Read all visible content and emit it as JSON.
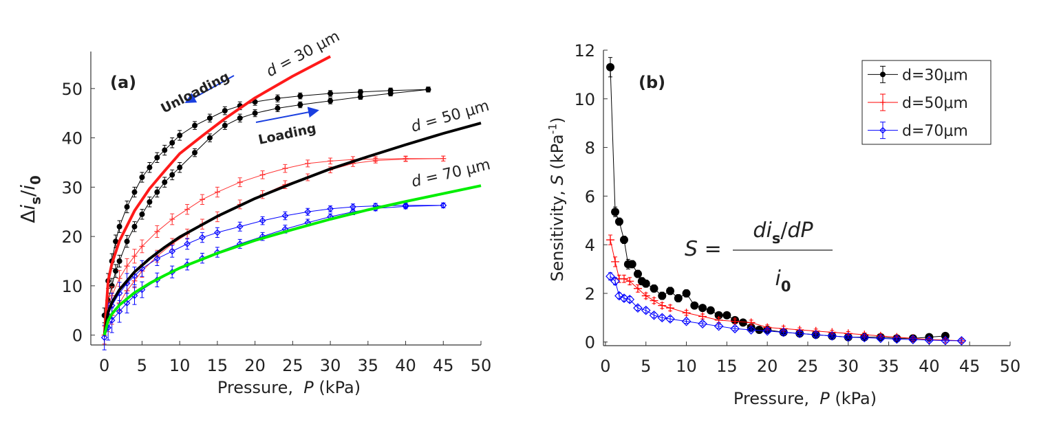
{
  "chart_data": [
    {
      "type": "line",
      "xlabel": [
        "Pressure,  ",
        "P",
        " (kPa)"
      ],
      "ylabel": [
        "Δ",
        "i",
        "s",
        "/",
        "i",
        "0"
      ],
      "annotations": [
        [
          "(a)"
        ],
        [
          "Unloading"
        ],
        [
          "Loading"
        ],
        [
          "d",
          " = 30 μm"
        ],
        [
          "d",
          " = 50 μm"
        ],
        [
          "d",
          " = 70 μm"
        ]
      ],
      "xlim": [
        -1.8,
        50
      ],
      "ylim": [
        -2,
        57.5
      ],
      "xticks": [
        0,
        5,
        10,
        15,
        20,
        25,
        30,
        35,
        40,
        45,
        50
      ],
      "yticks": [
        0,
        10,
        20,
        30,
        40,
        50
      ],
      "series": [
        {
          "color": "#000000",
          "marker": "circle",
          "x": [
            0.5,
            1,
            1.5,
            2,
            3,
            4,
            5,
            6,
            7,
            8,
            9,
            10,
            12,
            14,
            16,
            18,
            20,
            23,
            26,
            30,
            34,
            38,
            43
          ],
          "values": [
            11,
            15,
            19,
            22,
            26,
            29,
            32,
            34,
            36,
            37.5,
            39,
            40.5,
            42.5,
            44,
            45.5,
            46.5,
            47.3,
            48,
            48.5,
            49,
            49.3,
            49.6,
            49.8
          ],
          "errors": [
            1.5,
            1.5,
            1.3,
            1.2,
            1.2,
            1,
            1,
            1,
            1,
            1,
            1,
            1,
            0.8,
            0.8,
            0.8,
            0.8,
            0.7,
            0.7,
            0.6,
            0.6,
            0.5,
            0.5,
            0.5
          ]
        },
        {
          "color": "#000000",
          "marker": "circle",
          "x": [
            0,
            0.5,
            1,
            1.5,
            2,
            3,
            4,
            5,
            6,
            7,
            8,
            9,
            10,
            12,
            14,
            16,
            18,
            20,
            23,
            26,
            30,
            34,
            38,
            43
          ],
          "values": [
            4,
            7,
            10,
            13,
            15,
            19,
            22,
            24.5,
            27,
            29,
            31,
            32.5,
            34,
            37,
            40,
            42.5,
            44,
            45,
            46,
            46.7,
            47.5,
            48.3,
            49,
            49.8
          ],
          "errors": [
            1.5,
            1.5,
            1.5,
            1.3,
            1.2,
            1.2,
            1,
            1,
            1,
            1,
            1,
            1,
            1,
            0.8,
            0.8,
            0.8,
            0.8,
            0.7,
            0.7,
            0.6,
            0.6,
            0.5,
            0.5,
            0.5
          ]
        },
        {
          "color": "#ff3333",
          "marker": "plus",
          "x": [
            0.5,
            1,
            2,
            3,
            4,
            5,
            7,
            9,
            11,
            13,
            15,
            18,
            21,
            24,
            27,
            30,
            33,
            36,
            40,
            45
          ],
          "values": [
            6,
            8,
            11.5,
            14,
            16,
            18,
            21,
            23.5,
            25.5,
            27.5,
            29,
            31,
            32.5,
            33.8,
            34.8,
            35.3,
            35.6,
            35.7,
            35.8,
            35.8
          ],
          "errors": [
            1.8,
            1.8,
            1.6,
            1.5,
            1.4,
            1.3,
            1.2,
            1.1,
            1,
            1,
            1,
            0.9,
            0.8,
            0.8,
            0.7,
            0.6,
            0.6,
            0.5,
            0.5,
            0.5
          ]
        },
        {
          "color": "#ff3333",
          "marker": "plus",
          "x": [
            0,
            0.5,
            1,
            2,
            3,
            4,
            5,
            7,
            9,
            11,
            13,
            15,
            18,
            21,
            24,
            27,
            30,
            33,
            36,
            40,
            45
          ],
          "values": [
            0,
            2.5,
            4,
            6.5,
            9,
            11,
            13,
            16,
            18.5,
            20.5,
            22.5,
            24,
            26.5,
            28.5,
            30.5,
            32,
            33.5,
            34.8,
            35.4,
            35.7,
            35.8
          ],
          "errors": [
            1.8,
            1.8,
            1.8,
            1.6,
            1.5,
            1.4,
            1.3,
            1.2,
            1.1,
            1,
            1,
            1,
            0.9,
            0.8,
            0.8,
            0.7,
            0.6,
            0.6,
            0.5,
            0.5,
            0.5
          ]
        },
        {
          "color": "#0000ff",
          "marker": "diamond",
          "x": [
            0.5,
            1,
            2,
            3,
            4,
            5,
            7,
            9,
            11,
            13,
            15,
            18,
            21,
            24,
            27,
            30,
            33,
            36,
            40,
            45
          ],
          "values": [
            4,
            6,
            8.5,
            10.5,
            12,
            13.5,
            15.5,
            17,
            18.5,
            19.8,
            20.8,
            22,
            23.2,
            24.2,
            25,
            25.6,
            26,
            26.2,
            26.3,
            26.3
          ],
          "errors": [
            2.5,
            2.5,
            2.2,
            2,
            1.8,
            1.6,
            1.4,
            1.2,
            1.1,
            1,
            1,
            0.9,
            0.8,
            0.8,
            0.7,
            0.6,
            0.6,
            0.5,
            0.5,
            0.5
          ]
        },
        {
          "color": "#0000ff",
          "marker": "diamond",
          "x": [
            0,
            0.5,
            1,
            2,
            3,
            4,
            5,
            7,
            9,
            11,
            13,
            15,
            18,
            21,
            24,
            27,
            30,
            33,
            36,
            40,
            45
          ],
          "values": [
            -0.5,
            1.5,
            3,
            4.8,
            6.5,
            8,
            9.2,
            11.2,
            12.8,
            14.3,
            15.6,
            16.8,
            18.5,
            20,
            21.5,
            22.8,
            24,
            25,
            25.7,
            26.1,
            26.3
          ],
          "errors": [
            2.5,
            2.5,
            2.5,
            2.2,
            2,
            1.8,
            1.6,
            1.4,
            1.2,
            1.1,
            1,
            1,
            0.9,
            0.8,
            0.8,
            0.7,
            0.6,
            0.6,
            0.5,
            0.5,
            0.5
          ]
        },
        {
          "color": "#ff1a1a",
          "line_width": 4,
          "x": [
            0,
            0.5,
            1,
            2,
            4,
            6,
            8,
            10,
            13,
            16,
            20,
            25,
            30
          ],
          "values": [
            0,
            11,
            14.5,
            19.1,
            25.2,
            29.7,
            33.3,
            36.8,
            40.4,
            43.9,
            48.1,
            52.5,
            56.5
          ]
        },
        {
          "color": "#000000",
          "line_width": 4,
          "x": [
            0,
            0.5,
            1,
            2,
            4,
            6,
            8,
            10,
            15,
            20,
            25,
            30,
            35,
            40,
            45,
            50
          ],
          "values": [
            0,
            4.7,
            6.6,
            9.2,
            12.8,
            15.5,
            17.8,
            19.9,
            24.1,
            27.7,
            30.8,
            33.7,
            36.2,
            38.6,
            40.9,
            43
          ]
        },
        {
          "color": "#00ee00",
          "line_width": 4,
          "x": [
            0,
            0.5,
            1,
            2,
            4,
            6,
            8,
            10,
            15,
            20,
            25,
            30,
            35,
            40,
            45,
            50
          ],
          "values": [
            0,
            3,
            4.3,
            6.1,
            8.6,
            10.5,
            12.1,
            13.6,
            16.6,
            19.2,
            21.4,
            23.5,
            25.4,
            27.1,
            28.7,
            30.3
          ]
        }
      ]
    },
    {
      "type": "line",
      "xlabel": [
        "Pressure,  ",
        "P",
        " (kPa)"
      ],
      "ylabel": [
        "Sensitivity, ",
        "S",
        " (kPa",
        "-1",
        ")"
      ],
      "annotations": [
        [
          "(b)"
        ]
      ],
      "formula": {
        "lhs": [
          "S",
          " ="
        ],
        "numerator": [
          "d",
          "i",
          "s",
          "/",
          "dP"
        ],
        "denominator": [
          "i",
          "0"
        ]
      },
      "legend": "upper right",
      "xlim": [
        -0.25,
        50
      ],
      "ylim": [
        -0.15,
        12
      ],
      "xticks": [
        0,
        5,
        10,
        15,
        20,
        25,
        30,
        35,
        40,
        45,
        50
      ],
      "yticks": [
        0,
        2,
        4,
        6,
        8,
        10,
        12
      ],
      "series": [
        {
          "name": "d=30μm",
          "color": "#000000",
          "marker": "circle",
          "line_width": 1,
          "x": [
            0.6,
            1.2,
            1.7,
            2.3,
            2.8,
            3.3,
            4,
            4.5,
            5,
            6,
            7,
            8,
            9,
            10,
            11,
            12,
            13,
            14,
            15,
            16,
            17,
            18,
            19,
            20,
            22,
            24,
            26,
            28,
            30,
            32,
            34,
            36,
            38,
            40,
            42
          ],
          "values": [
            11.3,
            5.35,
            4.95,
            4.2,
            3.2,
            3.2,
            2.8,
            2.5,
            2.4,
            2.2,
            1.9,
            2.1,
            1.8,
            2,
            1.5,
            1.4,
            1.3,
            1.1,
            1.1,
            0.9,
            0.8,
            0.6,
            0.5,
            0.5,
            0.4,
            0.35,
            0.3,
            0.25,
            0.2,
            0.2,
            0.2,
            0.15,
            0.15,
            0.2,
            0.25
          ],
          "errors": [
            0.4,
            0.2,
            0.15,
            0.15,
            0.2,
            0.15,
            0.15,
            0.15,
            0.15,
            0.15,
            0.15,
            0.15,
            0.15,
            0.15,
            0.12,
            0.12,
            0.12,
            0.1,
            0.1,
            0.1,
            0.1,
            0.1,
            0.1,
            0.1,
            0.08,
            0.08,
            0.08,
            0.08,
            0.08,
            0.08,
            0.08,
            0.08,
            0.08,
            0.08,
            0.08
          ]
        },
        {
          "name": "d=50μm",
          "color": "#ff0000",
          "marker": "plus",
          "line_width": 1,
          "x": [
            0.6,
            1.2,
            1.7,
            2.3,
            3,
            4,
            5,
            6,
            7,
            8,
            10,
            12,
            14,
            16,
            18,
            20,
            22,
            24,
            26,
            28,
            30,
            32,
            34,
            36,
            38,
            40,
            42,
            44
          ],
          "values": [
            4.2,
            3.3,
            2.6,
            2.6,
            2.5,
            2.2,
            1.9,
            1.7,
            1.5,
            1.4,
            1.2,
            1.05,
            0.9,
            0.85,
            0.8,
            0.6,
            0.55,
            0.5,
            0.45,
            0.4,
            0.35,
            0.3,
            0.25,
            0.2,
            0.15,
            0.1,
            0.08,
            0.05
          ],
          "errors": [
            0.2,
            0.2,
            0.15,
            0.15,
            0.15,
            0.15,
            0.12,
            0.12,
            0.12,
            0.12,
            0.1,
            0.1,
            0.1,
            0.1,
            0.1,
            0.1,
            0.1,
            0.08,
            0.08,
            0.08,
            0.08,
            0.08,
            0.08,
            0.08,
            0.08,
            0.08,
            0.08,
            0.08
          ]
        },
        {
          "name": "d=70μm",
          "color": "#0000ff",
          "marker": "diamond",
          "line_width": 1,
          "x": [
            0.6,
            1.2,
            1.7,
            2.3,
            3,
            4,
            5,
            6,
            7,
            8,
            10,
            12,
            14,
            16,
            18,
            20,
            22,
            24,
            26,
            28,
            30,
            32,
            34,
            36,
            38,
            40,
            42,
            44
          ],
          "values": [
            2.7,
            2.5,
            1.9,
            1.8,
            1.75,
            1.4,
            1.3,
            1.1,
            1,
            0.95,
            0.85,
            0.75,
            0.65,
            0.55,
            0.5,
            0.45,
            0.4,
            0.35,
            0.3,
            0.25,
            0.2,
            0.18,
            0.15,
            0.12,
            0.1,
            0.08,
            0.06,
            0.05
          ],
          "errors": [
            0.15,
            0.15,
            0.12,
            0.12,
            0.12,
            0.1,
            0.1,
            0.1,
            0.1,
            0.1,
            0.08,
            0.08,
            0.08,
            0.08,
            0.08,
            0.08,
            0.08,
            0.08,
            0.08,
            0.06,
            0.06,
            0.06,
            0.06,
            0.06,
            0.06,
            0.06,
            0.06,
            0.06
          ]
        }
      ]
    }
  ]
}
